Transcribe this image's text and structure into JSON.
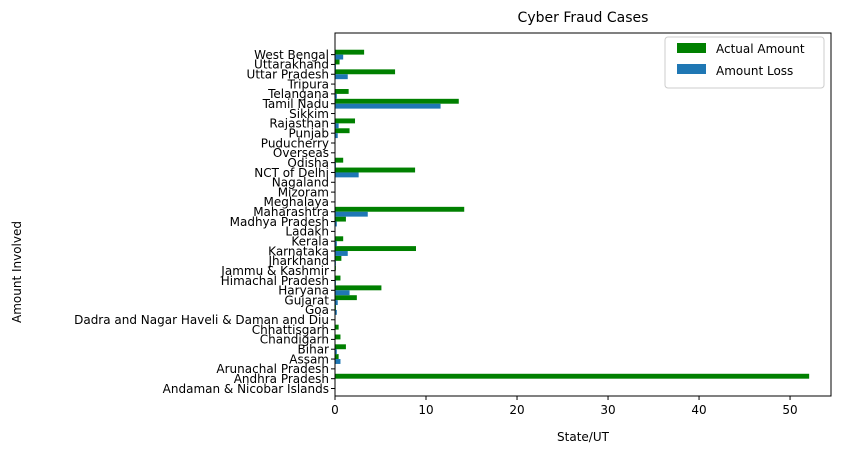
{
  "chart_data": {
    "type": "bar",
    "orientation": "horizontal",
    "title": "Cyber Fraud Cases",
    "xlabel": "State/UT",
    "ylabel": "Amount Involved",
    "xlim": [
      0,
      54.5
    ],
    "xticks": [
      "0",
      "10",
      "20",
      "30",
      "40",
      "50"
    ],
    "grid": false,
    "legend_position": "top-right",
    "categories": [
      "Andaman & Nicobar Islands",
      "Andhra Pradesh",
      "Arunachal Pradesh",
      "Assam",
      "Bihar",
      "Chandigarh",
      "Chhattisgarh",
      "Dadra and Nagar Haveli & Daman and Diu",
      "Goa",
      "Gujarat",
      "Haryana",
      "Himachal Pradesh",
      "Jammu & Kashmir",
      "Jharkhand",
      "Karnataka",
      "Kerala",
      "Ladakh",
      "Madhya Pradesh",
      "Maharashtra",
      "Meghalaya",
      "Mizoram",
      "Nagaland",
      "NCT of Delhi",
      "Odisha",
      "Overseas",
      "Puducherry",
      "Punjab",
      "Rajasthan",
      "Sikkim",
      "Tamil Nadu",
      "Telangana",
      "Tripura",
      "Uttar Pradesh",
      "Uttarakhand",
      "West Bengal"
    ],
    "series": [
      {
        "name": "Actual Amount",
        "color": "#008000",
        "values": [
          0,
          52.1,
          0,
          0.4,
          1.2,
          0.6,
          0.4,
          0,
          0.1,
          2.4,
          5.1,
          0.6,
          0.1,
          0.7,
          8.9,
          0.9,
          0,
          1.2,
          14.2,
          0,
          0,
          0,
          8.8,
          0.9,
          0,
          0,
          1.6,
          2.2,
          0,
          13.6,
          1.5,
          0,
          6.6,
          0.5,
          3.2
        ]
      },
      {
        "name": "Amount Loss",
        "color": "#1f77b4",
        "values": [
          0,
          0,
          0,
          0.6,
          0.2,
          0,
          0,
          0,
          0.2,
          0.3,
          1.6,
          0.1,
          0,
          0.1,
          1.4,
          0.2,
          0,
          0.2,
          3.6,
          0,
          0,
          0,
          2.6,
          0.1,
          0,
          0,
          0.3,
          0.4,
          0,
          11.6,
          0.2,
          0,
          1.4,
          0.1,
          0.9
        ]
      }
    ]
  }
}
